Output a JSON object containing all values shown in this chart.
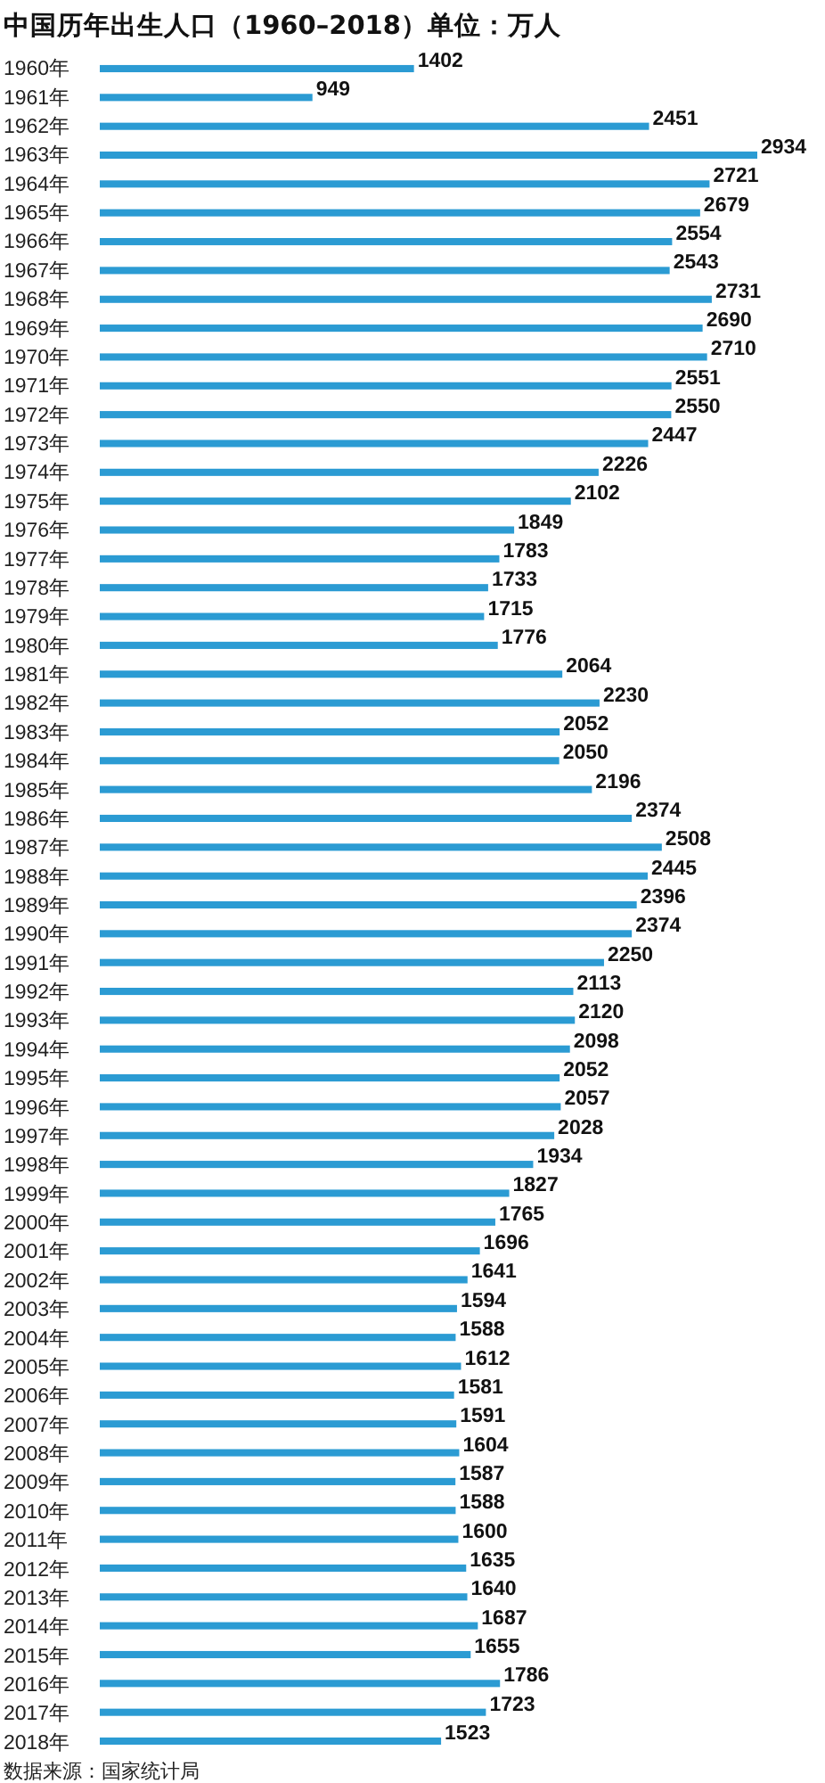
{
  "chart_data": {
    "type": "bar",
    "orientation": "horizontal",
    "title": "中国历年出生人口（1960–2018）单位：万人",
    "categories": [
      "1960年",
      "1961年",
      "1962年",
      "1963年",
      "1964年",
      "1965年",
      "1966年",
      "1967年",
      "1968年",
      "1969年",
      "1970年",
      "1971年",
      "1972年",
      "1973年",
      "1974年",
      "1975年",
      "1976年",
      "1977年",
      "1978年",
      "1979年",
      "1980年",
      "1981年",
      "1982年",
      "1983年",
      "1984年",
      "1985年",
      "1986年",
      "1987年",
      "1988年",
      "1989年",
      "1990年",
      "1991年",
      "1992年",
      "1993年",
      "1994年",
      "1995年",
      "1996年",
      "1997年",
      "1998年",
      "1999年",
      "2000年",
      "2001年",
      "2002年",
      "2003年",
      "2004年",
      "2005年",
      "2006年",
      "2007年",
      "2008年",
      "2009年",
      "2010年",
      "2011年",
      "2012年",
      "2013年",
      "2014年",
      "2015年",
      "2016年",
      "2017年",
      "2018年"
    ],
    "values": [
      1402,
      949,
      2451,
      2934,
      2721,
      2679,
      2554,
      2543,
      2731,
      2690,
      2710,
      2551,
      2550,
      2447,
      2226,
      2102,
      1849,
      1783,
      1733,
      1715,
      1776,
      2064,
      2230,
      2052,
      2050,
      2196,
      2374,
      2508,
      2445,
      2396,
      2374,
      2250,
      2113,
      2120,
      2098,
      2052,
      2057,
      2028,
      1934,
      1827,
      1765,
      1696,
      1641,
      1594,
      1588,
      1612,
      1581,
      1591,
      1604,
      1587,
      1588,
      1600,
      1635,
      1640,
      1687,
      1655,
      1786,
      1723,
      1523
    ],
    "color": "#2b9bd3",
    "data_labels": true,
    "annotations": [
      "数据来源：国家统计局"
    ]
  }
}
